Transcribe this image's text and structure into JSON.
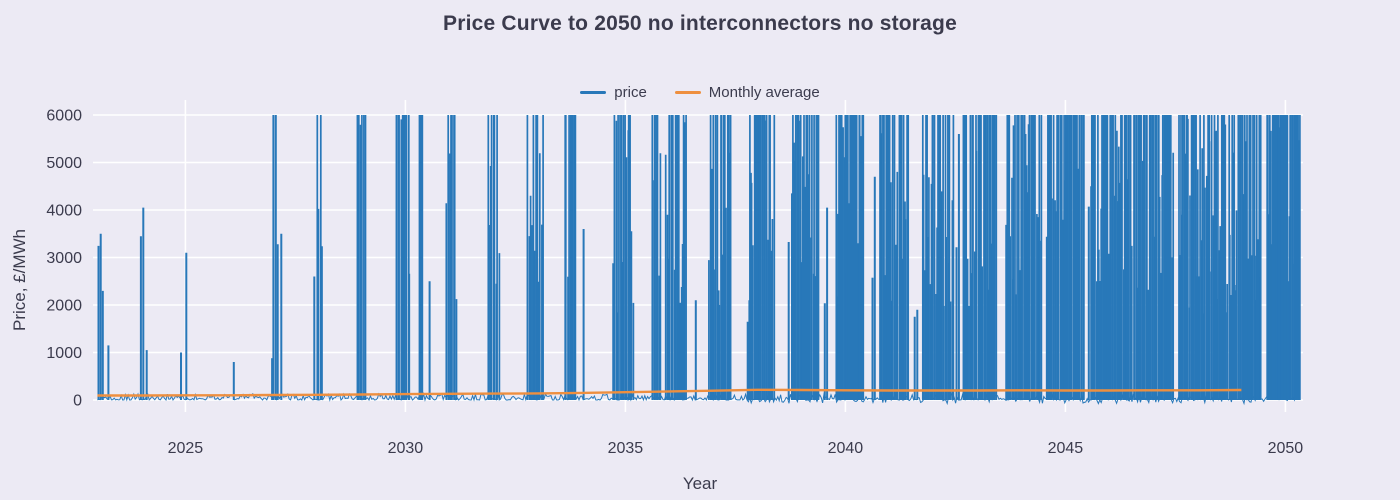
{
  "chart_data": {
    "type": "line",
    "title": "Price Curve to 2050 no interconnectors no storage",
    "xlabel": "Year",
    "ylabel": "Price, £/MWh",
    "xlim": [
      2022.9,
      2050.4
    ],
    "ylim": [
      0,
      6000
    ],
    "xticks": [
      2025,
      2030,
      2035,
      2040,
      2045,
      2050
    ],
    "yticks": [
      0,
      1000,
      2000,
      3000,
      4000,
      5000,
      6000
    ],
    "grid": true,
    "legend_position": "top-center",
    "colors": {
      "background": "#eceaf4",
      "grid": "#ffffff",
      "text": "#3b3b4d",
      "price": "#2878b9",
      "monthly_average": "#ee8f3f"
    },
    "series": [
      {
        "name": "price",
        "type": "spike-clusters",
        "unit": "£/MWh",
        "baseline_band": [
          0,
          130
        ],
        "negative_dips_after": 2037.5,
        "cluster_format": [
          "center_year",
          "span_years",
          "peak_price",
          "spike_count"
        ],
        "clusters": [
          [
            2023.08,
            0.1,
            3500,
            3
          ],
          [
            2023.25,
            0.02,
            1150,
            1
          ],
          [
            2024.02,
            0.05,
            4050,
            2
          ],
          [
            2024.12,
            0.02,
            1050,
            1
          ],
          [
            2024.9,
            0.02,
            1000,
            1
          ],
          [
            2025.02,
            0.03,
            3100,
            1
          ],
          [
            2026.1,
            0.03,
            800,
            1
          ],
          [
            2026.97,
            0.03,
            880,
            1
          ],
          [
            2027.05,
            0.1,
            6000,
            3
          ],
          [
            2027.18,
            0.02,
            3500,
            1
          ],
          [
            2027.93,
            0.03,
            2600,
            1
          ],
          [
            2028.05,
            0.12,
            6000,
            4
          ],
          [
            2029.0,
            0.18,
            6000,
            6
          ],
          [
            2029.95,
            0.3,
            6000,
            10
          ],
          [
            2030.35,
            0.06,
            6000,
            3
          ],
          [
            2030.55,
            0.03,
            2500,
            1
          ],
          [
            2031.05,
            0.22,
            6000,
            8
          ],
          [
            2032.0,
            0.25,
            6000,
            9
          ],
          [
            2032.95,
            0.35,
            6000,
            12
          ],
          [
            2033.75,
            0.25,
            6000,
            9
          ],
          [
            2034.05,
            0.03,
            3600,
            1
          ],
          [
            2034.95,
            0.45,
            6000,
            16
          ],
          [
            2035.7,
            0.18,
            6000,
            7
          ],
          [
            2036.15,
            0.45,
            6000,
            18
          ],
          [
            2036.6,
            0.03,
            2100,
            1
          ],
          [
            2037.15,
            0.5,
            6000,
            20
          ],
          [
            2037.8,
            0.05,
            2100,
            2
          ],
          [
            2038.1,
            0.55,
            6000,
            22
          ],
          [
            2038.75,
            0.06,
            4350,
            2
          ],
          [
            2039.1,
            0.6,
            6000,
            24
          ],
          [
            2039.55,
            0.05,
            4050,
            2
          ],
          [
            2039.85,
            0.05,
            2850,
            2
          ],
          [
            2040.1,
            0.6,
            6000,
            26
          ],
          [
            2040.65,
            0.05,
            4700,
            2
          ],
          [
            2041.1,
            0.65,
            6000,
            26
          ],
          [
            2041.6,
            0.05,
            1900,
            2
          ],
          [
            2042.1,
            0.7,
            6000,
            28
          ],
          [
            2042.55,
            0.06,
            5600,
            2
          ],
          [
            2043.05,
            0.75,
            6000,
            30
          ],
          [
            2044.05,
            0.8,
            6000,
            32
          ],
          [
            2045.0,
            0.85,
            6000,
            34
          ],
          [
            2045.55,
            0.06,
            4500,
            2
          ],
          [
            2046.05,
            0.9,
            6000,
            36
          ],
          [
            2047.0,
            0.9,
            6000,
            36
          ],
          [
            2047.3,
            0.05,
            4300,
            2
          ],
          [
            2047.62,
            0.05,
            3900,
            2
          ],
          [
            2048.05,
            0.95,
            6000,
            40
          ],
          [
            2049.0,
            0.9,
            6000,
            40
          ],
          [
            2049.95,
            0.75,
            6000,
            38
          ]
        ]
      },
      {
        "name": "Monthly average",
        "type": "line",
        "x": [
          2023,
          2024,
          2025,
          2026,
          2027,
          2028,
          2029,
          2030,
          2031,
          2032,
          2033,
          2034,
          2035,
          2036,
          2037,
          2038,
          2039,
          2040,
          2041,
          2042,
          2043,
          2044,
          2045,
          2046,
          2047,
          2048,
          2049
        ],
        "y": [
          95,
          95,
          100,
          100,
          105,
          110,
          115,
          125,
          130,
          135,
          140,
          150,
          165,
          180,
          195,
          215,
          210,
          205,
          200,
          200,
          200,
          205,
          200,
          200,
          205,
          205,
          210
        ]
      }
    ]
  }
}
